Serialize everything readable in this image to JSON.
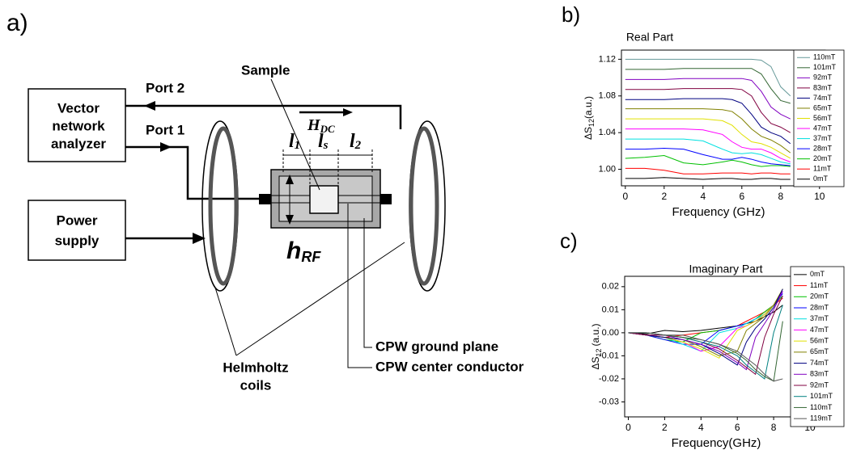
{
  "panel_labels": [
    "a)",
    "b)",
    "c)"
  ],
  "diagram": {
    "vna_label": [
      "Vector",
      "network",
      "analyzer"
    ],
    "power_label": [
      "Power",
      "supply"
    ],
    "port2": "Port 2",
    "port1": "Port 1",
    "sample": "Sample",
    "h_dc": {
      "main": "H",
      "sub": "DC"
    },
    "l1": {
      "main": "l",
      "sub": "1"
    },
    "ls": {
      "main": "l",
      "sub": "s"
    },
    "l2": {
      "main": "l",
      "sub": "2"
    },
    "h_rf": {
      "main": "h",
      "sub": "RF"
    },
    "coils_label": [
      "Helmholtz",
      "coils"
    ],
    "ground_plane": "CPW ground plane",
    "center_conductor": "CPW center conductor"
  },
  "chart_data": [
    {
      "type": "line",
      "title": "Real Part",
      "x_label": "Frequency (GHz)",
      "y_label": {
        "main": "ΔS",
        "sub": "12",
        "rest": "(a.u.)"
      },
      "x": [
        0,
        1,
        2,
        3,
        4,
        5,
        5.5,
        6,
        6.5,
        7,
        7.5,
        8,
        8.5
      ],
      "xlim": [
        -0.2,
        10.3
      ],
      "xticks": [
        0,
        2,
        4,
        6,
        8,
        10
      ],
      "ylim": [
        0.982,
        1.13
      ],
      "yticks": [
        {
          "value": 1,
          "label": "1.00"
        },
        1.04,
        1.08,
        1.12
      ],
      "legend": "right",
      "series": [
        {
          "name": "110mT",
          "color": "#669999",
          "values": [
            1.12,
            1.12,
            1.12,
            1.12,
            1.12,
            1.12,
            1.12,
            1.12,
            1.12,
            1.119,
            1.112,
            1.09,
            1.08
          ]
        },
        {
          "name": "101mT",
          "color": "#336633",
          "values": [
            1.109,
            1.109,
            1.109,
            1.11,
            1.11,
            1.11,
            1.11,
            1.11,
            1.11,
            1.104,
            1.088,
            1.075,
            1.072
          ]
        },
        {
          "name": "92mT",
          "color": "#8000c0",
          "values": [
            1.098,
            1.098,
            1.098,
            1.099,
            1.099,
            1.099,
            1.099,
            1.099,
            1.097,
            1.085,
            1.068,
            1.06,
            1.055
          ]
        },
        {
          "name": "83mT",
          "color": "#800040",
          "values": [
            1.087,
            1.087,
            1.087,
            1.088,
            1.088,
            1.088,
            1.088,
            1.087,
            1.08,
            1.062,
            1.05,
            1.046,
            1.04
          ]
        },
        {
          "name": "74mT",
          "color": "#000080",
          "values": [
            1.076,
            1.076,
            1.076,
            1.077,
            1.077,
            1.077,
            1.076,
            1.072,
            1.06,
            1.046,
            1.04,
            1.036,
            1.028
          ]
        },
        {
          "name": "65mT",
          "color": "#808000",
          "values": [
            1.066,
            1.066,
            1.066,
            1.066,
            1.066,
            1.065,
            1.063,
            1.055,
            1.044,
            1.036,
            1.032,
            1.026,
            1.018
          ]
        },
        {
          "name": "56mT",
          "color": "#e0e000",
          "values": [
            1.055,
            1.055,
            1.055,
            1.055,
            1.055,
            1.053,
            1.048,
            1.038,
            1.03,
            1.028,
            1.024,
            1.018,
            1.012
          ]
        },
        {
          "name": "47mT",
          "color": "#ff00ff",
          "values": [
            1.044,
            1.044,
            1.044,
            1.044,
            1.043,
            1.038,
            1.03,
            1.024,
            1.022,
            1.022,
            1.018,
            1.012,
            1.008
          ]
        },
        {
          "name": "37mT",
          "color": "#00e0e0",
          "values": [
            1.033,
            1.033,
            1.033,
            1.033,
            1.031,
            1.022,
            1.018,
            1.017,
            1.018,
            1.016,
            1.012,
            1.008,
            1.006
          ]
        },
        {
          "name": "28mT",
          "color": "#0000ff",
          "values": [
            1.022,
            1.022,
            1.023,
            1.022,
            1.016,
            1.011,
            1.011,
            1.013,
            1.011,
            1.008,
            1.006,
            1.005,
            1.004
          ]
        },
        {
          "name": "20mT",
          "color": "#00c000",
          "values": [
            1.012,
            1.013,
            1.015,
            1.007,
            1.005,
            1.008,
            1.01,
            1.008,
            1.005,
            1.003,
            1.004,
            1.004,
            1.003
          ]
        },
        {
          "name": "11mT",
          "color": "#ff0000",
          "values": [
            1.001,
            1.001,
            0.999,
            0.995,
            0.995,
            0.996,
            0.996,
            0.996,
            0.995,
            0.996,
            0.996,
            0.995,
            0.995
          ]
        },
        {
          "name": "0mT",
          "color": "#000000",
          "values": [
            0.99,
            0.99,
            0.991,
            0.99,
            0.989,
            0.99,
            0.99,
            0.989,
            0.989,
            0.99,
            0.99,
            0.989,
            0.989
          ]
        }
      ]
    },
    {
      "type": "line",
      "title": "Imaginary Part",
      "x_label": "Frequency(GHz)",
      "y_label": {
        "main": "ΔS",
        "sub": "12",
        "rest": "(a.u.)"
      },
      "x": [
        0,
        1,
        2,
        3,
        4,
        5,
        6,
        6.5,
        7,
        7.5,
        8,
        8.5
      ],
      "xlim": [
        -0.2,
        10.4
      ],
      "xticks": [
        0,
        2,
        4,
        6,
        8,
        10
      ],
      "ylim": [
        -0.0365,
        0.0245
      ],
      "yticks": [
        0.02,
        0.01,
        {
          "value": 0,
          "label": "0.00"
        },
        -0.01,
        -0.02,
        -0.03
      ],
      "legend": "right",
      "series": [
        {
          "name": "0mT",
          "color": "#000000",
          "values": [
            0,
            -0.0005,
            0.001,
            0.0005,
            0.001,
            0.002,
            0.003,
            0.004,
            0.005,
            0.007,
            0.009,
            0.012
          ]
        },
        {
          "name": "11mT",
          "color": "#ff0000",
          "values": [
            0,
            -0.001,
            -0.002,
            -0.001,
            0.0,
            0.001,
            0.003,
            0.005,
            0.007,
            0.009,
            0.012,
            0.015
          ]
        },
        {
          "name": "20mT",
          "color": "#00c000",
          "values": [
            0,
            -0.001,
            -0.003,
            -0.004,
            0.0,
            0.001,
            0.003,
            0.004,
            0.006,
            0.009,
            0.012,
            0.016
          ]
        },
        {
          "name": "28mT",
          "color": "#0000ff",
          "values": [
            0,
            -0.001,
            -0.003,
            -0.005,
            -0.005,
            0.001,
            0.003,
            0.004,
            0.006,
            0.008,
            0.012,
            0.017
          ]
        },
        {
          "name": "37mT",
          "color": "#00e0e0",
          "values": [
            0,
            -0.001,
            -0.002,
            -0.005,
            -0.008,
            0.0,
            0.002,
            0.004,
            0.006,
            0.008,
            0.012,
            0.018
          ]
        },
        {
          "name": "47mT",
          "color": "#ff00ff",
          "values": [
            0,
            -0.001,
            -0.002,
            -0.004,
            -0.008,
            -0.006,
            0.002,
            0.003,
            0.005,
            0.008,
            0.012,
            0.018
          ]
        },
        {
          "name": "56mT",
          "color": "#e0e000",
          "values": [
            0,
            -0.001,
            -0.002,
            -0.004,
            -0.007,
            -0.011,
            0.001,
            0.003,
            0.005,
            0.008,
            0.012,
            0.019
          ]
        },
        {
          "name": "65mT",
          "color": "#808000",
          "values": [
            0,
            -0.001,
            -0.002,
            -0.003,
            -0.006,
            -0.01,
            -0.008,
            0.001,
            0.004,
            0.007,
            0.012,
            0.019
          ]
        },
        {
          "name": "74mT",
          "color": "#000080",
          "values": [
            0,
            -0.001,
            -0.002,
            -0.003,
            -0.005,
            -0.009,
            -0.014,
            -0.004,
            0.002,
            0.006,
            0.011,
            0.019
          ]
        },
        {
          "name": "83mT",
          "color": "#8000c0",
          "values": [
            0,
            -0.001,
            -0.001,
            -0.003,
            -0.005,
            -0.008,
            -0.013,
            -0.016,
            -0.002,
            0.004,
            0.01,
            0.018
          ]
        },
        {
          "name": "92mT",
          "color": "#800040",
          "values": [
            0,
            -0.001,
            -0.001,
            -0.002,
            -0.004,
            -0.007,
            -0.012,
            -0.015,
            -0.018,
            -0.002,
            0.008,
            0.016
          ]
        },
        {
          "name": "101mT",
          "color": "#008080",
          "values": [
            0,
            0,
            -0.001,
            -0.002,
            -0.004,
            -0.006,
            -0.01,
            -0.014,
            -0.017,
            -0.02,
            0.0,
            0.012
          ]
        },
        {
          "name": "110mT",
          "color": "#336633",
          "values": [
            0,
            0,
            -0.001,
            -0.002,
            -0.003,
            -0.005,
            -0.009,
            -0.012,
            -0.016,
            -0.019,
            -0.021,
            0.005
          ]
        },
        {
          "name": "119mT",
          "color": "#555555",
          "values": [
            0,
            0,
            -0.001,
            -0.001,
            -0.003,
            -0.005,
            -0.008,
            -0.011,
            -0.014,
            -0.018,
            -0.021,
            -0.02
          ]
        }
      ]
    }
  ]
}
